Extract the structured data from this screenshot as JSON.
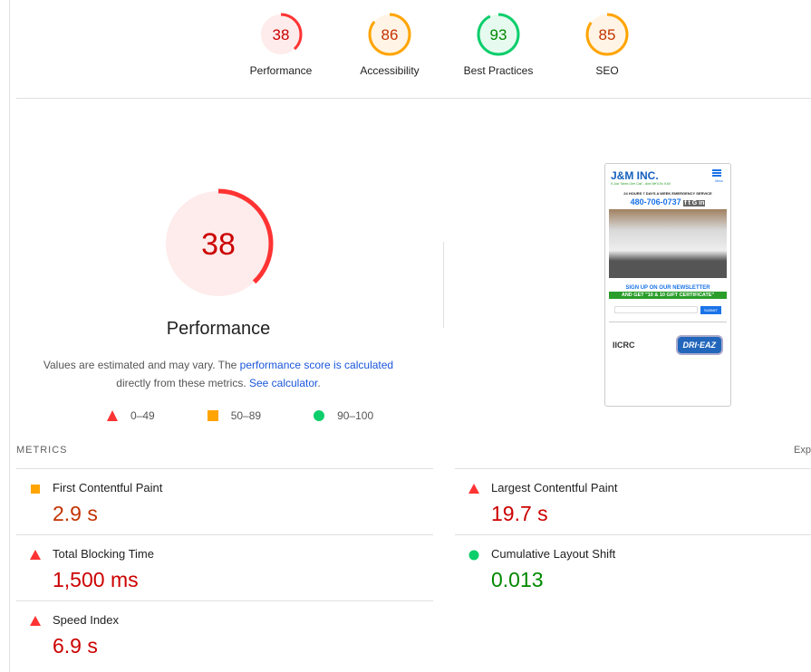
{
  "categories": [
    {
      "label": "Performance",
      "score": "38",
      "status": "fail"
    },
    {
      "label": "Accessibility",
      "score": "86",
      "status": "average"
    },
    {
      "label": "Best Practices",
      "score": "93",
      "status": "pass"
    },
    {
      "label": "SEO",
      "score": "85",
      "status": "average"
    }
  ],
  "performance": {
    "score": "38",
    "title": "Performance",
    "desc_pre": "Values are estimated and may vary. The ",
    "desc_link": "performance score is calculated",
    "desc_mid": " directly from these metrics. ",
    "desc_link2": "See calculator",
    "desc_post": "."
  },
  "legend": [
    {
      "range": "0–49",
      "shape": "triangle"
    },
    {
      "range": "50–89",
      "shape": "square"
    },
    {
      "range": "90–100",
      "shape": "circle"
    }
  ],
  "colors": {
    "fail": "#ff3333",
    "average": "#ffa400",
    "pass": "#0cce6b",
    "fail_bg": "#fdeceb",
    "average_bg": "#fff4e5",
    "pass_bg": "#e6faef"
  },
  "metrics_header": "METRICS",
  "expand_label": "Exp",
  "metrics": [
    {
      "name": "First Contentful Paint",
      "value": "2.9 s",
      "status": "average"
    },
    {
      "name": "Largest Contentful Paint",
      "value": "19.7 s",
      "status": "fail"
    },
    {
      "name": "Total Blocking Time",
      "value": "1,500 ms",
      "status": "fail"
    },
    {
      "name": "Cumulative Layout Shift",
      "value": "0.013",
      "status": "pass"
    },
    {
      "name": "Speed Index",
      "value": "6.9 s",
      "status": "fail"
    }
  ],
  "screenshot": {
    "logo": "J&M INC.",
    "tagline": "It Just Takes One Call... And We'll Do It All",
    "menu": "Menu",
    "service": "24 HOURS 7 DAYS A WEEK EMERGENCY SERVICE",
    "phone": "480-706-0737",
    "newsletter": "SIGN UP ON OUR NEWSLETTER",
    "gift": "AND GET \"10 & 10 GIFT CERTIFICATE\"",
    "submit": "SUBMIT",
    "iicrc": "IICRC",
    "drieaz": "DRI·EAZ"
  }
}
